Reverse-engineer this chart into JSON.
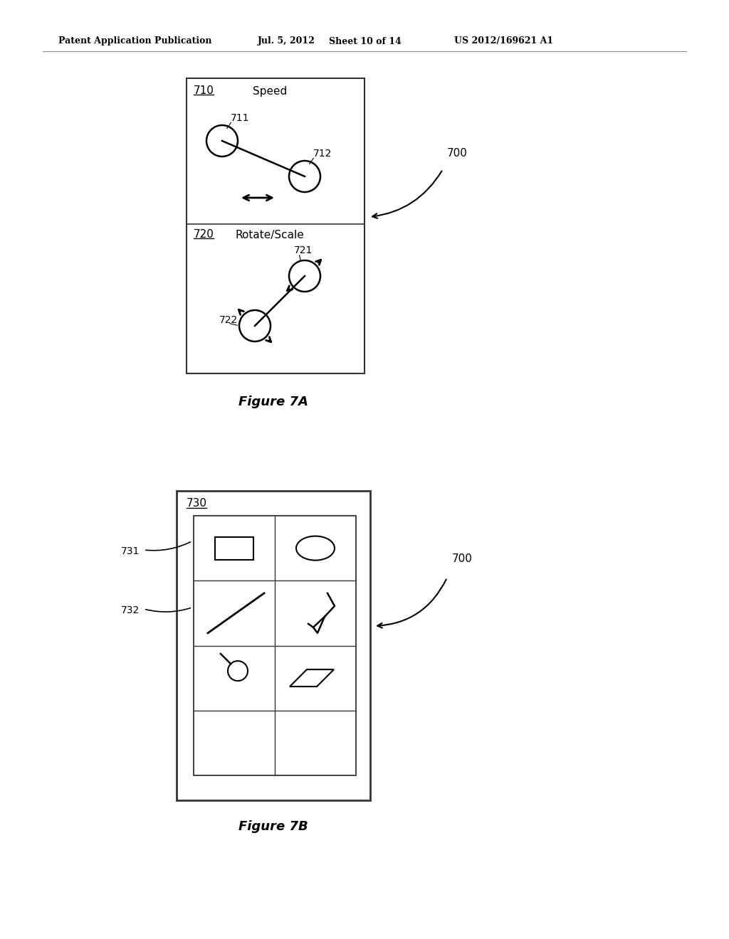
{
  "bg_color": "#ffffff",
  "header_text": "Patent Application Publication",
  "header_date": "Jul. 5, 2012",
  "header_sheet": "Sheet 10 of 14",
  "header_patent": "US 2012/169621 A1",
  "fig7a_label": "Figure 7A",
  "fig7b_label": "Figure 7B",
  "label_700a": "700",
  "label_700b": "700",
  "box710_label": "710",
  "box710_title": "Speed",
  "label_711": "711",
  "label_712": "712",
  "box720_label": "720",
  "box720_title": "Rotate/Scale",
  "label_721": "721",
  "label_722": "722",
  "box730_label": "730",
  "label_731": "731",
  "label_732": "732"
}
